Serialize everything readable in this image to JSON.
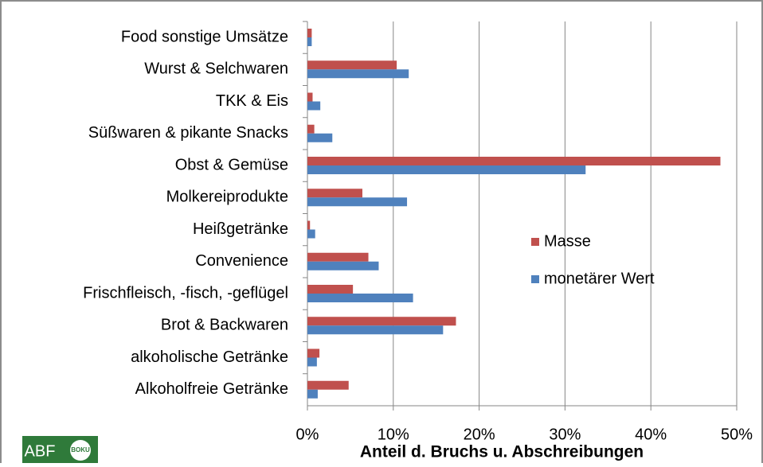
{
  "chart_data": {
    "type": "bar",
    "orientation": "horizontal",
    "x_label": "Anteil d. Bruchs u. Abschreibungen",
    "categories": [
      "Food sonstige Umsätze",
      "Wurst & Selchwaren",
      "TKK & Eis",
      "Süßwaren & pikante Snacks",
      "Obst & Gemüse",
      "Molkereiprodukte",
      "Heißgetränke",
      "Convenience",
      "Frischfleisch, -fisch, -geflügel",
      "Brot & Backwaren",
      "alkoholische Getränke",
      "Alkoholfreie Getränke"
    ],
    "series": [
      {
        "name": "Masse",
        "color": "#c0504d",
        "values": [
          0.5,
          10.4,
          0.6,
          0.8,
          48.1,
          6.4,
          0.3,
          7.1,
          5.3,
          17.3,
          1.4,
          4.8
        ]
      },
      {
        "name": "monetärer Wert",
        "color": "#4f81bd",
        "values": [
          0.5,
          11.8,
          1.5,
          2.9,
          32.4,
          11.6,
          0.9,
          8.3,
          12.3,
          15.8,
          1.1,
          1.2
        ]
      }
    ],
    "xlim": [
      0,
      50
    ],
    "xticks": [
      {
        "value": 0,
        "label": "0%"
      },
      {
        "value": 10,
        "label": "10%"
      },
      {
        "value": 20,
        "label": "20%"
      },
      {
        "value": 30,
        "label": "30%"
      },
      {
        "value": 40,
        "label": "40%"
      },
      {
        "value": 50,
        "label": "50%"
      }
    ],
    "grid": true,
    "legend": "right"
  },
  "logo": {
    "left": "ABF",
    "right": "BOKU"
  }
}
